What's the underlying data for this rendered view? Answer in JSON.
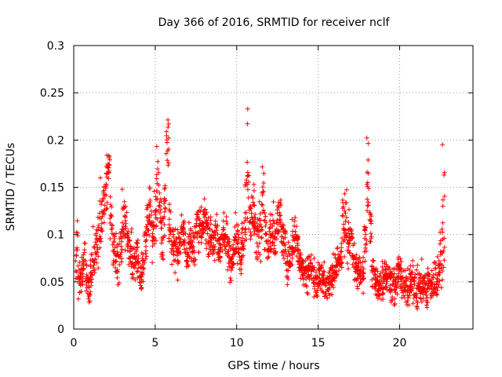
{
  "chart_data": {
    "type": "scatter",
    "title": "Day 366 of 2016, SRMTID for receiver nclf",
    "xlabel": "GPS time / hours",
    "ylabel": "SRMTID / TECUs",
    "xlim": [
      0,
      24.5
    ],
    "ylim": [
      0,
      0.3
    ],
    "x_ticks": [
      0,
      5,
      10,
      15,
      20
    ],
    "y_ticks": [
      0,
      0.05,
      0.1,
      0.15,
      0.2,
      0.25,
      0.3
    ],
    "x_tick_labels": [
      "0",
      "5",
      "10",
      "15",
      "20"
    ],
    "y_tick_labels": [
      "0",
      "0.05",
      "0.1",
      "0.15",
      "0.2",
      "0.25",
      "0.3"
    ],
    "grid": true,
    "marker": "+",
    "marker_color": "#ff0000",
    "series": [
      {
        "name": "nclf",
        "x": [
          0.05,
          0.2,
          0.35,
          0.5,
          0.65,
          0.8,
          0.95,
          1.1,
          1.25,
          1.4,
          1.55,
          1.7,
          1.85,
          2.0,
          2.15,
          2.3,
          2.45,
          2.6,
          2.75,
          2.9,
          3.05,
          3.2,
          3.35,
          3.5,
          3.65,
          3.8,
          3.95,
          4.1,
          4.25,
          4.4,
          4.55,
          4.7,
          4.85,
          5.0,
          5.15,
          5.3,
          5.45,
          5.6,
          5.75,
          5.9,
          6.05,
          6.2,
          6.35,
          6.5,
          6.65,
          6.8,
          6.95,
          7.1,
          7.25,
          7.4,
          7.55,
          7.7,
          7.85,
          8.0,
          8.15,
          8.3,
          8.45,
          8.6,
          8.75,
          8.9,
          9.05,
          9.2,
          9.35,
          9.5,
          9.65,
          9.8,
          9.95,
          10.1,
          10.25,
          10.4,
          10.55,
          10.7,
          10.85,
          11.0,
          11.15,
          11.3,
          11.45,
          11.6,
          11.75,
          11.9,
          12.05,
          12.2,
          12.35,
          12.5,
          12.65,
          12.8,
          12.95,
          13.1,
          13.25,
          13.4,
          13.55,
          13.7,
          13.85,
          14.0,
          14.15,
          14.3,
          14.45,
          14.6,
          14.75,
          14.9,
          15.05,
          15.2,
          15.35,
          15.5,
          15.65,
          15.8,
          15.95,
          16.1,
          16.25,
          16.4,
          16.55,
          16.7,
          16.85,
          17.0,
          17.15,
          17.3,
          17.45,
          17.6,
          17.75,
          17.9,
          18.05,
          18.2,
          18.35,
          18.5,
          18.65,
          18.8,
          18.95,
          19.1,
          19.25,
          19.4,
          19.55,
          19.7,
          19.85,
          20.0,
          20.15,
          20.3,
          20.45,
          20.6,
          20.75,
          20.9,
          21.05,
          21.2,
          21.35,
          21.5,
          21.65,
          21.8,
          21.95,
          22.1,
          22.25,
          22.4,
          22.55,
          22.7
        ],
        "center": [
          0.065,
          0.08,
          0.055,
          0.06,
          0.075,
          0.05,
          0.04,
          0.06,
          0.075,
          0.085,
          0.1,
          0.12,
          0.135,
          0.155,
          0.17,
          0.12,
          0.09,
          0.08,
          0.07,
          0.085,
          0.12,
          0.11,
          0.09,
          0.08,
          0.07,
          0.08,
          0.075,
          0.055,
          0.065,
          0.09,
          0.11,
          0.125,
          0.1,
          0.12,
          0.16,
          0.12,
          0.09,
          0.13,
          0.2,
          0.11,
          0.095,
          0.085,
          0.08,
          0.09,
          0.1,
          0.095,
          0.08,
          0.1,
          0.085,
          0.09,
          0.11,
          0.105,
          0.1,
          0.115,
          0.11,
          0.1,
          0.095,
          0.09,
          0.1,
          0.085,
          0.09,
          0.1,
          0.095,
          0.08,
          0.07,
          0.085,
          0.1,
          0.09,
          0.075,
          0.1,
          0.125,
          0.18,
          0.11,
          0.13,
          0.1,
          0.095,
          0.11,
          0.14,
          0.1,
          0.085,
          0.1,
          0.095,
          0.09,
          0.11,
          0.12,
          0.095,
          0.085,
          0.07,
          0.08,
          0.09,
          0.1,
          0.09,
          0.07,
          0.065,
          0.06,
          0.055,
          0.06,
          0.065,
          0.055,
          0.05,
          0.06,
          0.055,
          0.05,
          0.045,
          0.05,
          0.055,
          0.06,
          0.065,
          0.07,
          0.08,
          0.11,
          0.12,
          0.1,
          0.095,
          0.075,
          0.065,
          0.06,
          0.06,
          0.055,
          0.1,
          0.16,
          0.11,
          0.06,
          0.05,
          0.045,
          0.05,
          0.055,
          0.06,
          0.055,
          0.05,
          0.05,
          0.045,
          0.055,
          0.06,
          0.05,
          0.045,
          0.04,
          0.05,
          0.055,
          0.045,
          0.04,
          0.05,
          0.045,
          0.045,
          0.04,
          0.05,
          0.045,
          0.05,
          0.055,
          0.06,
          0.08,
          0.12
        ],
        "spread": [
          0.012,
          0.02,
          0.015,
          0.015,
          0.015,
          0.015,
          0.012,
          0.015,
          0.02,
          0.02,
          0.02,
          0.02,
          0.02,
          0.025,
          0.015,
          0.02,
          0.015,
          0.015,
          0.015,
          0.015,
          0.02,
          0.02,
          0.015,
          0.015,
          0.015,
          0.02,
          0.015,
          0.012,
          0.015,
          0.02,
          0.02,
          0.02,
          0.02,
          0.025,
          0.035,
          0.02,
          0.02,
          0.025,
          0.025,
          0.02,
          0.015,
          0.015,
          0.015,
          0.015,
          0.015,
          0.015,
          0.015,
          0.015,
          0.015,
          0.015,
          0.015,
          0.015,
          0.015,
          0.02,
          0.015,
          0.015,
          0.015,
          0.015,
          0.015,
          0.015,
          0.015,
          0.015,
          0.015,
          0.015,
          0.015,
          0.015,
          0.02,
          0.015,
          0.015,
          0.02,
          0.03,
          0.05,
          0.02,
          0.025,
          0.02,
          0.02,
          0.02,
          0.025,
          0.02,
          0.02,
          0.02,
          0.02,
          0.015,
          0.02,
          0.02,
          0.015,
          0.015,
          0.015,
          0.015,
          0.015,
          0.02,
          0.015,
          0.015,
          0.012,
          0.012,
          0.012,
          0.012,
          0.012,
          0.012,
          0.012,
          0.012,
          0.012,
          0.012,
          0.012,
          0.012,
          0.012,
          0.012,
          0.012,
          0.015,
          0.02,
          0.025,
          0.02,
          0.02,
          0.015,
          0.015,
          0.012,
          0.012,
          0.012,
          0.012,
          0.03,
          0.04,
          0.02,
          0.012,
          0.015,
          0.015,
          0.015,
          0.015,
          0.015,
          0.015,
          0.015,
          0.015,
          0.015,
          0.015,
          0.015,
          0.015,
          0.015,
          0.015,
          0.015,
          0.015,
          0.015,
          0.015,
          0.015,
          0.015,
          0.015,
          0.015,
          0.015,
          0.015,
          0.015,
          0.015,
          0.015,
          0.03,
          0.05
        ]
      }
    ]
  }
}
